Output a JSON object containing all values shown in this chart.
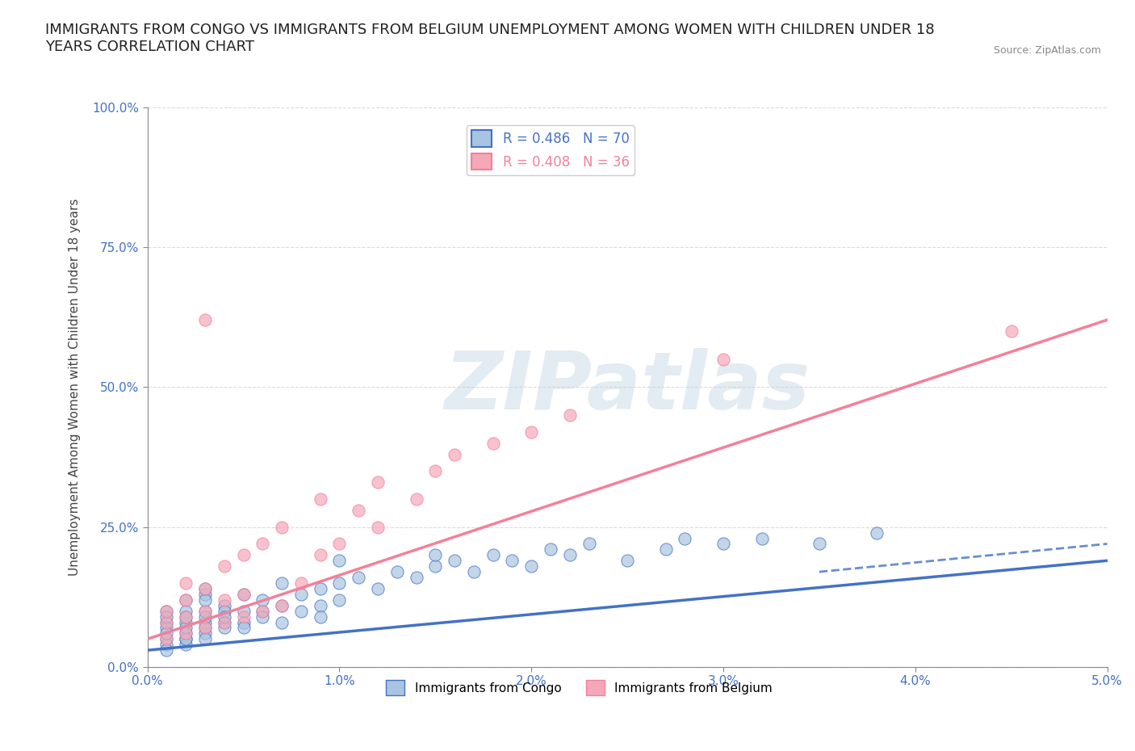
{
  "title": "IMMIGRANTS FROM CONGO VS IMMIGRANTS FROM BELGIUM UNEMPLOYMENT AMONG WOMEN WITH CHILDREN UNDER 18\nYEARS CORRELATION CHART",
  "source": "Source: ZipAtlas.com",
  "ylabel": "Unemployment Among Women with Children Under 18 years",
  "xlabel": "",
  "xlim": [
    0.0,
    0.05
  ],
  "ylim": [
    0.0,
    1.0
  ],
  "xticks": [
    0.0,
    0.01,
    0.02,
    0.03,
    0.04,
    0.05
  ],
  "xtick_labels": [
    "0.0%",
    "1.0%",
    "2.0%",
    "3.0%",
    "4.0%",
    "5.0%"
  ],
  "yticks": [
    0.0,
    0.25,
    0.5,
    0.75,
    1.0
  ],
  "ytick_labels": [
    "0.0%",
    "25.0%",
    "50.0%",
    "75.0%",
    "100.0%"
  ],
  "congo_R": 0.486,
  "congo_N": 70,
  "belgium_R": 0.408,
  "belgium_N": 36,
  "congo_color": "#a8c4e0",
  "belgium_color": "#f4a8b8",
  "congo_line_color": "#4472c4",
  "belgium_line_color": "#f48099",
  "title_fontsize": 13,
  "axis_label_fontsize": 11,
  "tick_fontsize": 11,
  "legend_fontsize": 12,
  "watermark_text": "ZIPatlas",
  "watermark_color": "#c8d8e8",
  "background_color": "#ffffff",
  "congo_scatter_x": [
    0.001,
    0.001,
    0.001,
    0.001,
    0.001,
    0.001,
    0.001,
    0.001,
    0.002,
    0.002,
    0.002,
    0.002,
    0.002,
    0.002,
    0.002,
    0.002,
    0.002,
    0.003,
    0.003,
    0.003,
    0.003,
    0.003,
    0.003,
    0.003,
    0.003,
    0.003,
    0.004,
    0.004,
    0.004,
    0.004,
    0.004,
    0.005,
    0.005,
    0.005,
    0.005,
    0.006,
    0.006,
    0.006,
    0.007,
    0.007,
    0.007,
    0.008,
    0.008,
    0.009,
    0.009,
    0.009,
    0.01,
    0.01,
    0.011,
    0.012,
    0.013,
    0.014,
    0.015,
    0.016,
    0.017,
    0.018,
    0.019,
    0.02,
    0.021,
    0.022,
    0.023,
    0.025,
    0.027,
    0.03,
    0.032,
    0.035,
    0.038,
    0.01,
    0.015,
    0.028
  ],
  "congo_scatter_y": [
    0.05,
    0.04,
    0.08,
    0.1,
    0.07,
    0.03,
    0.06,
    0.09,
    0.05,
    0.08,
    0.12,
    0.06,
    0.04,
    0.1,
    0.07,
    0.09,
    0.05,
    0.06,
    0.1,
    0.08,
    0.13,
    0.07,
    0.05,
    0.12,
    0.09,
    0.14,
    0.08,
    0.11,
    0.07,
    0.1,
    0.09,
    0.1,
    0.08,
    0.13,
    0.07,
    0.1,
    0.12,
    0.09,
    0.11,
    0.15,
    0.08,
    0.13,
    0.1,
    0.14,
    0.11,
    0.09,
    0.15,
    0.12,
    0.16,
    0.14,
    0.17,
    0.16,
    0.18,
    0.19,
    0.17,
    0.2,
    0.19,
    0.18,
    0.21,
    0.2,
    0.22,
    0.19,
    0.21,
    0.22,
    0.23,
    0.22,
    0.24,
    0.19,
    0.2,
    0.23
  ],
  "belgium_scatter_x": [
    0.001,
    0.001,
    0.001,
    0.002,
    0.002,
    0.002,
    0.002,
    0.003,
    0.003,
    0.003,
    0.004,
    0.004,
    0.004,
    0.005,
    0.005,
    0.005,
    0.006,
    0.006,
    0.007,
    0.007,
    0.008,
    0.009,
    0.009,
    0.01,
    0.011,
    0.012,
    0.012,
    0.014,
    0.015,
    0.016,
    0.018,
    0.02,
    0.022,
    0.03,
    0.045,
    0.003
  ],
  "belgium_scatter_y": [
    0.05,
    0.08,
    0.1,
    0.06,
    0.09,
    0.12,
    0.15,
    0.07,
    0.1,
    0.14,
    0.08,
    0.12,
    0.18,
    0.09,
    0.13,
    0.2,
    0.1,
    0.22,
    0.11,
    0.25,
    0.15,
    0.2,
    0.3,
    0.22,
    0.28,
    0.25,
    0.33,
    0.3,
    0.35,
    0.38,
    0.4,
    0.42,
    0.45,
    0.55,
    0.6,
    0.62
  ],
  "congo_trend_x": [
    0.0,
    0.05
  ],
  "congo_trend_y": [
    0.03,
    0.19
  ],
  "belgium_trend_x": [
    0.0,
    0.05
  ],
  "belgium_trend_y": [
    0.05,
    0.62
  ]
}
